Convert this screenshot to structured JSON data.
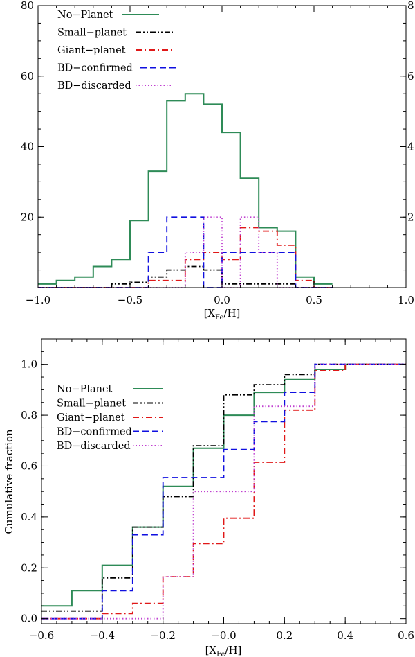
{
  "chart_data": [
    {
      "type": "histogram",
      "title": "",
      "xlabel": "[X_Fe/H]",
      "ylabel": "",
      "xlim": [
        -1.0,
        1.0
      ],
      "ylim": [
        0,
        80
      ],
      "y2lim": [
        0,
        8
      ],
      "x_ticks": [
        -1.0,
        -0.5,
        0.0,
        0.5,
        1.0
      ],
      "x_tick_labels": [
        "−1.0",
        "−0.5",
        "0.0",
        "0.5",
        "1.0"
      ],
      "y_ticks": [
        20,
        40,
        60,
        80
      ],
      "y_tick_labels": [
        "20",
        "40",
        "60",
        "80"
      ],
      "y2_ticks": [
        2,
        4,
        6,
        8
      ],
      "y2_tick_labels": [
        "2",
        "4",
        "6",
        "8"
      ],
      "bin_edges": [
        -1.0,
        -0.9,
        -0.8,
        -0.7,
        -0.6,
        -0.5,
        -0.4,
        -0.3,
        -0.2,
        -0.1,
        0.0,
        0.1,
        0.2,
        0.3,
        0.4,
        0.5,
        0.6
      ],
      "legend_position": "top-left",
      "series": [
        {
          "name": "No−Planet",
          "axis": "left",
          "color": "#2e8b57",
          "dash": "solid",
          "values": [
            1,
            2,
            3,
            6,
            8,
            19,
            33,
            53,
            55,
            52,
            44,
            31,
            17,
            16,
            3,
            1
          ]
        },
        {
          "name": "Small−planet",
          "axis": "right",
          "color": "#000000",
          "dash": "dashdotdot",
          "values": [
            0,
            0,
            0,
            0,
            0.1,
            0.15,
            0.3,
            0.5,
            0.6,
            0.5,
            0.1,
            0.1,
            0.1,
            0.1,
            0,
            0
          ]
        },
        {
          "name": "Giant−planet",
          "axis": "right",
          "color": "#e01818",
          "dash": "dashdot",
          "values": [
            0,
            0,
            0,
            0,
            0,
            0,
            0.2,
            0.2,
            0.8,
            1.0,
            0.8,
            1.7,
            1.6,
            1.2,
            0.2,
            0
          ]
        },
        {
          "name": "BD−confirmed",
          "axis": "right",
          "color": "#1010e0",
          "dash": "dashed",
          "values": [
            0,
            0,
            0,
            0,
            0,
            0,
            1.0,
            2.0,
            2.0,
            0,
            1.0,
            1.0,
            1.0,
            1.0,
            0,
            0
          ]
        },
        {
          "name": "BD−discarded",
          "axis": "right",
          "color": "#c040d0",
          "dash": "dotted",
          "values": [
            0,
            0,
            0,
            0,
            0,
            0,
            0,
            0,
            1.0,
            2.0,
            0,
            2.0,
            1.0,
            0,
            0,
            0
          ]
        }
      ]
    },
    {
      "type": "line",
      "step": true,
      "title": "",
      "xlabel": "[X_Fe/H]",
      "ylabel": "Cumulative fraction",
      "xlim": [
        -0.6,
        0.6
      ],
      "ylim": [
        -0.02,
        1.1
      ],
      "x_ticks": [
        -0.6,
        -0.4,
        -0.2,
        0.0,
        0.2,
        0.4,
        0.6
      ],
      "x_tick_labels": [
        "−0.6",
        "−0.4",
        "−0.2",
        "−0.0",
        "0.2",
        "0.4",
        "0.6"
      ],
      "y_ticks": [
        0.0,
        0.2,
        0.4,
        0.6,
        0.8,
        1.0
      ],
      "y_tick_labels": [
        "0.0",
        "0.2",
        "0.4",
        "0.6",
        "0.8",
        "1.0"
      ],
      "x": [
        -0.6,
        -0.5,
        -0.4,
        -0.3,
        -0.2,
        -0.1,
        0.0,
        0.1,
        0.2,
        0.3,
        0.4,
        0.5,
        0.6
      ],
      "legend_position": "upper-left",
      "series": [
        {
          "name": "No−Planet",
          "color": "#2e8b57",
          "dash": "solid",
          "values": [
            0.05,
            0.11,
            0.21,
            0.36,
            0.52,
            0.67,
            0.8,
            0.89,
            0.94,
            0.98,
            1.0,
            1.0,
            1.0
          ]
        },
        {
          "name": "Small−planet",
          "color": "#000000",
          "dash": "dashdotdot",
          "values": [
            0.03,
            0.03,
            0.16,
            0.36,
            0.48,
            0.68,
            0.88,
            0.92,
            0.96,
            1.0,
            1.0,
            1.0,
            1.0
          ]
        },
        {
          "name": "Giant−planet",
          "color": "#e01818",
          "dash": "dashdot",
          "values": [
            0.0,
            0.0,
            0.02,
            0.06,
            0.165,
            0.295,
            0.395,
            0.615,
            0.82,
            0.975,
            1.0,
            1.0,
            1.0
          ]
        },
        {
          "name": "BD−confirmed",
          "color": "#1010e0",
          "dash": "dashed",
          "values": [
            0.0,
            0.0,
            0.11,
            0.33,
            0.555,
            0.555,
            0.665,
            0.775,
            0.89,
            1.0,
            1.0,
            1.0,
            1.0
          ]
        },
        {
          "name": "BD−discarded",
          "color": "#c040d0",
          "dash": "dotted",
          "values": [
            0.0,
            0.0,
            0.0,
            0.0,
            0.165,
            0.5,
            0.5,
            0.835,
            0.835,
            1.0,
            1.0,
            1.0,
            1.0
          ]
        }
      ]
    }
  ]
}
